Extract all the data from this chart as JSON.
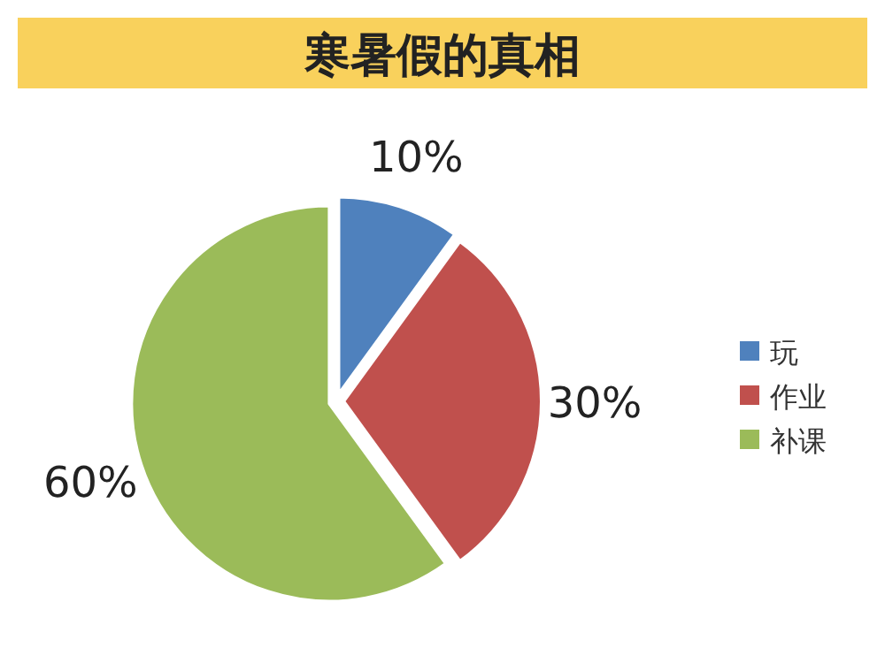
{
  "chart_data": {
    "type": "pie",
    "title": "寒暑假的真相",
    "categories": [
      "玩",
      "作业",
      "补课"
    ],
    "values": [
      10,
      30,
      60
    ],
    "colors": [
      "#4f81bd",
      "#c0504d",
      "#9bbb59"
    ],
    "value_labels": [
      "10%",
      "30%",
      "60%"
    ],
    "legend": "right"
  }
}
